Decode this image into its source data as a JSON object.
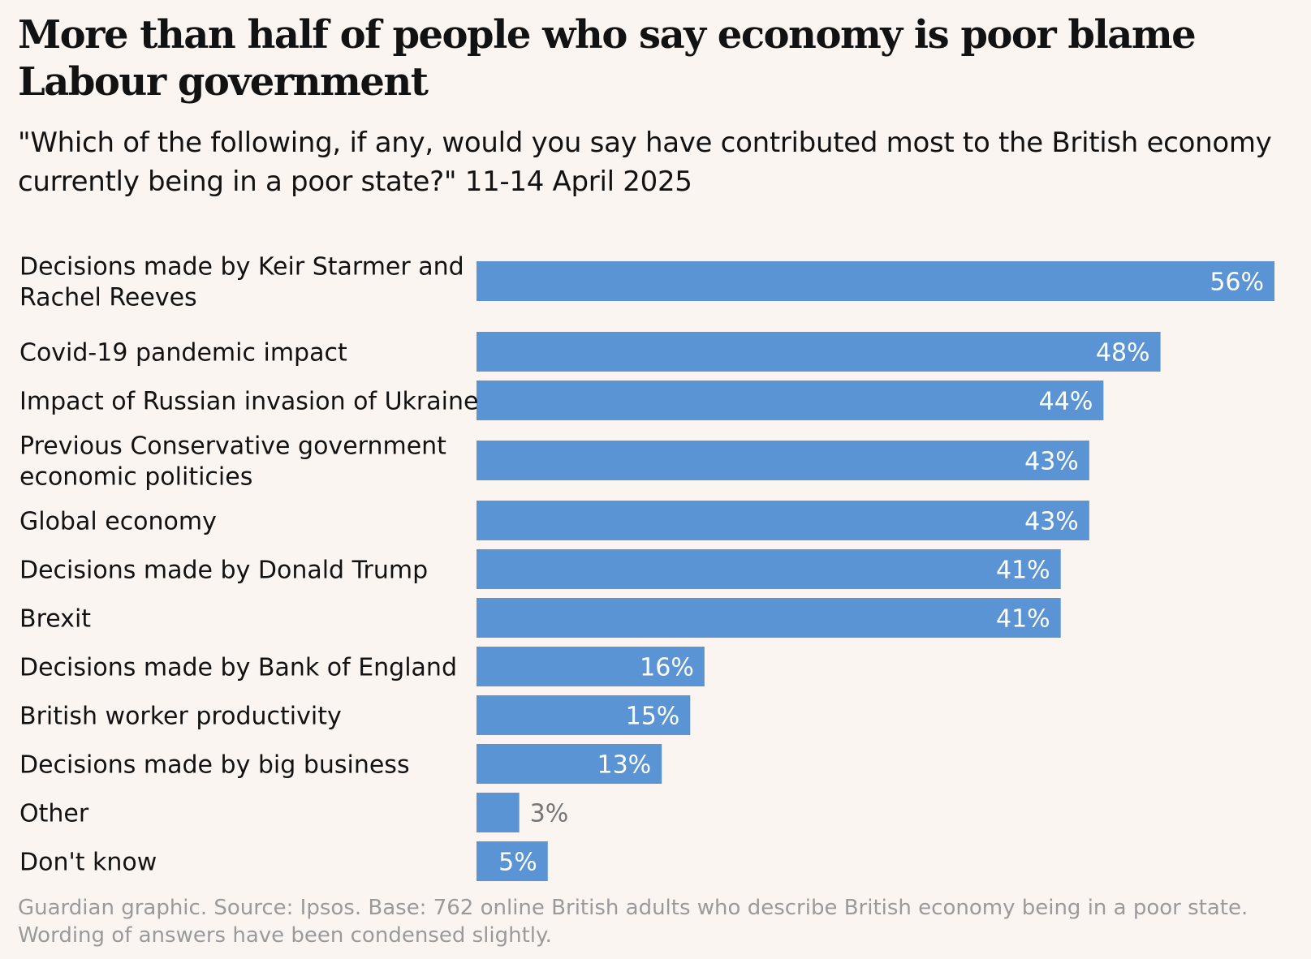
{
  "header": {
    "title": "More than half of people who say economy is poor blame Labour government",
    "subtitle": "\"Which of the following, if any, would you say have contributed most to the British economy currently being in a poor state?\" 11-14 April 2025"
  },
  "footer": {
    "source_line1": "Guardian graphic. Source: Ipsos. Base: 762 online British adults who describe British economy being in a poor state.",
    "source_line2": "Wording of answers have been condensed slightly."
  },
  "colors": {
    "bar": "#5b94d4",
    "label_inside": "#ffffff",
    "label_outside": "#767676",
    "background": "#fbf5f2"
  },
  "chart_data": {
    "type": "bar",
    "orientation": "horizontal",
    "categories": [
      "Decisions made by Keir Starmer and Rachel Reeves",
      "Covid-19 pandemic impact",
      "Impact of Russian invasion of Ukraine",
      "Previous Conservative government economic politicies",
      "Global economy",
      "Decisions made by Donald Trump",
      "Brexit",
      "Decisions made by Bank of England",
      "British worker productivity",
      "Decisions made by big business",
      "Other",
      "Don't know"
    ],
    "category_lines": [
      [
        "Decisions made by Keir Starmer and",
        "Rachel Reeves"
      ],
      [
        "Covid-19 pandemic impact"
      ],
      [
        "Impact of Russian invasion of Ukraine"
      ],
      [
        "Previous Conservative government",
        "economic politicies"
      ],
      [
        "Global economy"
      ],
      [
        "Decisions made by Donald Trump"
      ],
      [
        "Brexit"
      ],
      [
        "Decisions made by Bank of England"
      ],
      [
        "British worker productivity"
      ],
      [
        "Decisions made by big business"
      ],
      [
        "Other"
      ],
      [
        "Don't know"
      ]
    ],
    "values": [
      56,
      48,
      44,
      43,
      43,
      41,
      41,
      16,
      15,
      13,
      3,
      5
    ],
    "value_labels": [
      "56%",
      "48%",
      "44%",
      "43%",
      "43%",
      "41%",
      "41%",
      "16%",
      "15%",
      "13%",
      "3%",
      "5%"
    ],
    "xlim": [
      0,
      56
    ],
    "grid": false,
    "legend": "none"
  }
}
